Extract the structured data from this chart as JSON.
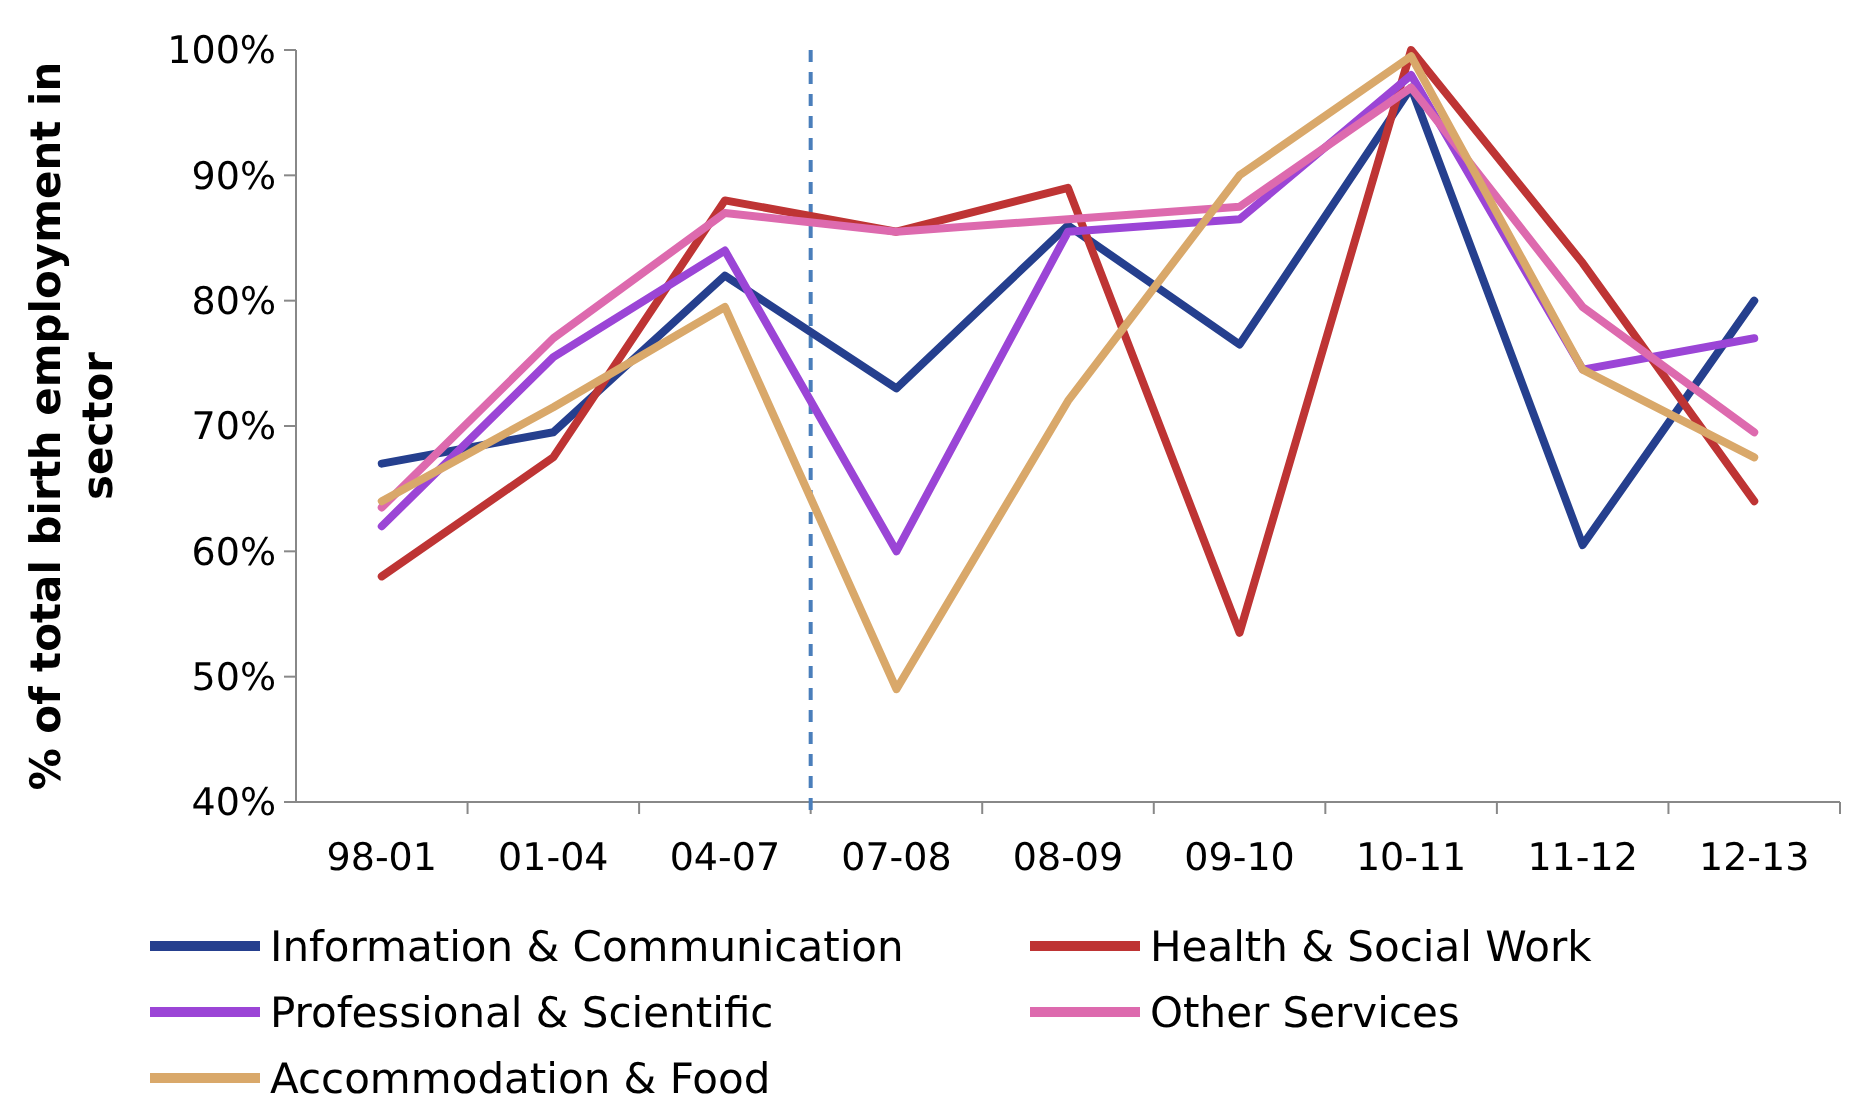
{
  "chart_data": {
    "type": "line",
    "ylabel": "% of total birth employment in sector",
    "categories": [
      "98-01",
      "01-04",
      "04-07",
      "07-08",
      "08-09",
      "09-10",
      "10-11",
      "11-12",
      "12-13"
    ],
    "ylim": [
      40,
      100
    ],
    "yticks": [
      {
        "value": 40,
        "label": "40%"
      },
      {
        "value": 50,
        "label": "50%"
      },
      {
        "value": 60,
        "label": "60%"
      },
      {
        "value": 70,
        "label": "70%"
      },
      {
        "value": 80,
        "label": "80%"
      },
      {
        "value": 90,
        "label": "90%"
      },
      {
        "value": 100,
        "label": "100%"
      }
    ],
    "grid": false,
    "legend": "bottom",
    "marker": "none",
    "line_style": "solid",
    "series": [
      {
        "name": "Information & Communication",
        "color": "#253f8e",
        "values": [
          67,
          69.5,
          82,
          73,
          86,
          76.5,
          97,
          60.5,
          80
        ]
      },
      {
        "name": "Health & Social Work",
        "color": "#be3434",
        "values": [
          58,
          67.5,
          88,
          85.5,
          89,
          53.5,
          100,
          83,
          64
        ]
      },
      {
        "name": "Professional & Scientific",
        "color": "#9b45d6",
        "values": [
          62,
          75.5,
          84,
          60,
          85.5,
          86.5,
          98,
          74.5,
          77
        ]
      },
      {
        "name": "Other Services",
        "color": "#dd6aae",
        "values": [
          63.5,
          77,
          87,
          85.5,
          86.5,
          87.5,
          97,
          79.5,
          69.5
        ]
      },
      {
        "name": "Accommodation & Food",
        "color": "#d9a86a",
        "values": [
          64,
          71.5,
          79.5,
          49,
          72,
          90,
          99.5,
          74.5,
          67.5
        ]
      }
    ]
  }
}
